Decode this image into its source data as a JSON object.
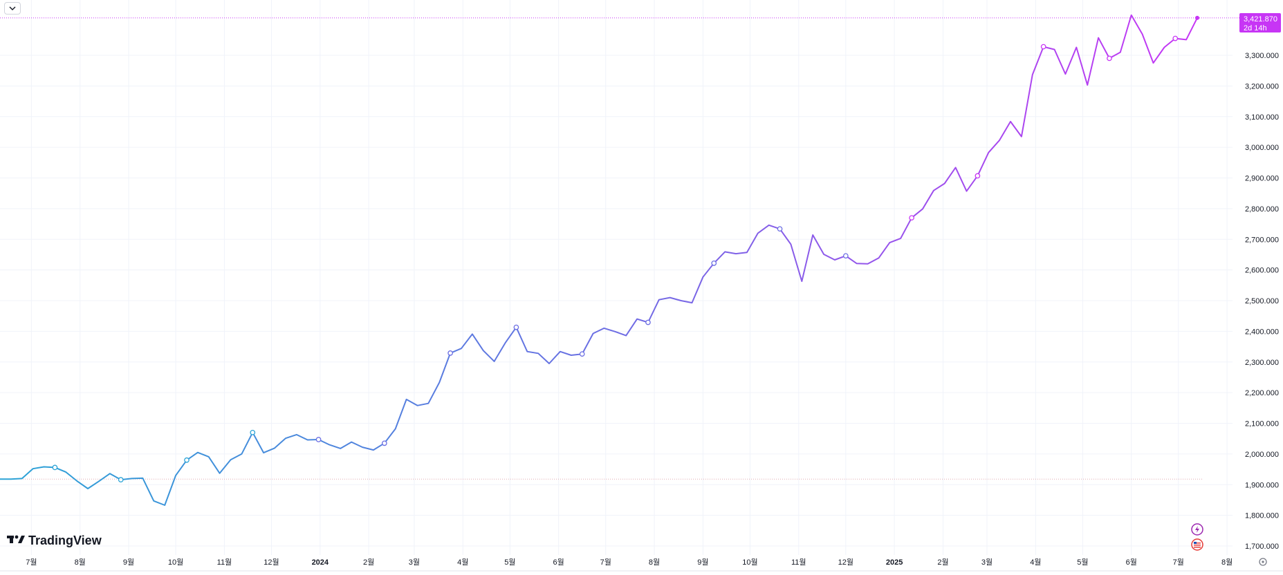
{
  "toolbar": {
    "collapse_icon": "chevron-down-icon"
  },
  "logo": {
    "text": "TradingView",
    "icon": "tradingview-logo-icon"
  },
  "price_tag": {
    "value": "3,421.870",
    "countdown": "2d 14h",
    "color": "#c735f5"
  },
  "badges": [
    {
      "icon": "lightning-icon",
      "color": "#9c27b0"
    },
    {
      "icon": "us-flag-icon",
      "color": "#e53935"
    }
  ],
  "settings": {
    "icon": "gear-icon"
  },
  "colors": {
    "start": "#2aa3d6",
    "mid": "#6b6ee3",
    "end": "#c735f5",
    "baseline": "#e0a8b0",
    "grid": "#f0f3fa"
  },
  "chart_data": {
    "type": "line",
    "ylim": [
      1680,
      3440
    ],
    "y_ticks": [
      "1,700.000",
      "1,800.000",
      "1,900.000",
      "2,000.000",
      "2,100.000",
      "2,200.000",
      "2,300.000",
      "2,400.000",
      "2,500.000",
      "2,600.000",
      "2,700.000",
      "2,800.000",
      "2,900.000",
      "3,000.000",
      "3,100.000",
      "3,200.000",
      "3,300.000"
    ],
    "x_ticks": [
      {
        "label": "7월",
        "bold": false,
        "date": "2023-07-01"
      },
      {
        "label": "8월",
        "bold": false,
        "date": "2023-08-01"
      },
      {
        "label": "9월",
        "bold": false,
        "date": "2023-09-01"
      },
      {
        "label": "10월",
        "bold": false,
        "date": "2023-10-01"
      },
      {
        "label": "11월",
        "bold": false,
        "date": "2023-11-01"
      },
      {
        "label": "12월",
        "bold": false,
        "date": "2023-12-01"
      },
      {
        "label": "2024",
        "bold": true,
        "date": "2024-01-01"
      },
      {
        "label": "2월",
        "bold": false,
        "date": "2024-02-01"
      },
      {
        "label": "3월",
        "bold": false,
        "date": "2024-03-01"
      },
      {
        "label": "4월",
        "bold": false,
        "date": "2024-04-01"
      },
      {
        "label": "5월",
        "bold": false,
        "date": "2024-05-01"
      },
      {
        "label": "6월",
        "bold": false,
        "date": "2024-06-01"
      },
      {
        "label": "7월",
        "bold": false,
        "date": "2024-07-01"
      },
      {
        "label": "8월",
        "bold": false,
        "date": "2024-08-01"
      },
      {
        "label": "9월",
        "bold": false,
        "date": "2024-09-01"
      },
      {
        "label": "10월",
        "bold": false,
        "date": "2024-10-01"
      },
      {
        "label": "11월",
        "bold": false,
        "date": "2024-11-01"
      },
      {
        "label": "12월",
        "bold": false,
        "date": "2024-12-01"
      },
      {
        "label": "2025",
        "bold": true,
        "date": "2025-01-01"
      },
      {
        "label": "2월",
        "bold": false,
        "date": "2025-02-01"
      },
      {
        "label": "3월",
        "bold": false,
        "date": "2025-03-01"
      },
      {
        "label": "4월",
        "bold": false,
        "date": "2025-04-01"
      },
      {
        "label": "5월",
        "bold": false,
        "date": "2025-05-01"
      },
      {
        "label": "6월",
        "bold": false,
        "date": "2025-06-01"
      },
      {
        "label": "7월",
        "bold": false,
        "date": "2025-07-01"
      },
      {
        "label": "8월",
        "bold": false,
        "date": "2025-08-01"
      }
    ],
    "baseline": 1918,
    "last_value": 3421.87,
    "points": [
      {
        "x": "2023-06-11",
        "y": 1918
      },
      {
        "x": "2023-06-18",
        "y": 1918
      },
      {
        "x": "2023-06-25",
        "y": 1920
      },
      {
        "x": "2023-07-02",
        "y": 1952
      },
      {
        "x": "2023-07-09",
        "y": 1958
      },
      {
        "x": "2023-07-16",
        "y": 1956,
        "marker": true
      },
      {
        "x": "2023-07-23",
        "y": 1941
      },
      {
        "x": "2023-07-30",
        "y": 1912
      },
      {
        "x": "2023-08-06",
        "y": 1887
      },
      {
        "x": "2023-08-13",
        "y": 1911
      },
      {
        "x": "2023-08-20",
        "y": 1936
      },
      {
        "x": "2023-08-27",
        "y": 1916,
        "marker": true
      },
      {
        "x": "2023-09-03",
        "y": 1920
      },
      {
        "x": "2023-09-10",
        "y": 1921
      },
      {
        "x": "2023-09-17",
        "y": 1847
      },
      {
        "x": "2023-09-24",
        "y": 1833
      },
      {
        "x": "2023-10-01",
        "y": 1930
      },
      {
        "x": "2023-10-08",
        "y": 1980,
        "marker": true
      },
      {
        "x": "2023-10-15",
        "y": 2005
      },
      {
        "x": "2023-10-22",
        "y": 1991
      },
      {
        "x": "2023-10-29",
        "y": 1937
      },
      {
        "x": "2023-11-05",
        "y": 1981
      },
      {
        "x": "2023-11-12",
        "y": 2000
      },
      {
        "x": "2023-11-19",
        "y": 2070,
        "marker": true
      },
      {
        "x": "2023-11-26",
        "y": 2004
      },
      {
        "x": "2023-12-03",
        "y": 2019
      },
      {
        "x": "2023-12-10",
        "y": 2051
      },
      {
        "x": "2023-12-17",
        "y": 2063
      },
      {
        "x": "2023-12-24",
        "y": 2046
      },
      {
        "x": "2023-12-31",
        "y": 2047,
        "marker": true
      },
      {
        "x": "2024-01-07",
        "y": 2030
      },
      {
        "x": "2024-01-14",
        "y": 2018
      },
      {
        "x": "2024-01-21",
        "y": 2039
      },
      {
        "x": "2024-01-28",
        "y": 2022
      },
      {
        "x": "2024-02-04",
        "y": 2013
      },
      {
        "x": "2024-02-11",
        "y": 2035,
        "marker": true
      },
      {
        "x": "2024-02-18",
        "y": 2082
      },
      {
        "x": "2024-02-25",
        "y": 2178
      },
      {
        "x": "2024-03-03",
        "y": 2158
      },
      {
        "x": "2024-03-10",
        "y": 2165
      },
      {
        "x": "2024-03-17",
        "y": 2233
      },
      {
        "x": "2024-03-24",
        "y": 2329,
        "marker": true
      },
      {
        "x": "2024-03-31",
        "y": 2344
      },
      {
        "x": "2024-04-07",
        "y": 2391
      },
      {
        "x": "2024-04-14",
        "y": 2337
      },
      {
        "x": "2024-04-21",
        "y": 2302
      },
      {
        "x": "2024-04-28",
        "y": 2362
      },
      {
        "x": "2024-05-05",
        "y": 2413,
        "marker": true
      },
      {
        "x": "2024-05-12",
        "y": 2334
      },
      {
        "x": "2024-05-19",
        "y": 2328
      },
      {
        "x": "2024-05-26",
        "y": 2295
      },
      {
        "x": "2024-06-02",
        "y": 2334
      },
      {
        "x": "2024-06-09",
        "y": 2322
      },
      {
        "x": "2024-06-16",
        "y": 2326,
        "marker": true
      },
      {
        "x": "2024-06-23",
        "y": 2393
      },
      {
        "x": "2024-06-30",
        "y": 2410
      },
      {
        "x": "2024-07-07",
        "y": 2399
      },
      {
        "x": "2024-07-14",
        "y": 2386
      },
      {
        "x": "2024-07-21",
        "y": 2440
      },
      {
        "x": "2024-07-28",
        "y": 2429,
        "marker": true
      },
      {
        "x": "2024-08-04",
        "y": 2503
      },
      {
        "x": "2024-08-11",
        "y": 2510
      },
      {
        "x": "2024-08-18",
        "y": 2500
      },
      {
        "x": "2024-08-25",
        "y": 2493
      },
      {
        "x": "2024-09-01",
        "y": 2577
      },
      {
        "x": "2024-09-08",
        "y": 2622,
        "marker": true
      },
      {
        "x": "2024-09-15",
        "y": 2659
      },
      {
        "x": "2024-09-22",
        "y": 2653
      },
      {
        "x": "2024-09-29",
        "y": 2657
      },
      {
        "x": "2024-10-06",
        "y": 2720
      },
      {
        "x": "2024-10-13",
        "y": 2746
      },
      {
        "x": "2024-10-20",
        "y": 2734,
        "marker": true
      },
      {
        "x": "2024-10-27",
        "y": 2684
      },
      {
        "x": "2024-11-03",
        "y": 2563
      },
      {
        "x": "2024-11-10",
        "y": 2714
      },
      {
        "x": "2024-11-17",
        "y": 2651
      },
      {
        "x": "2024-11-24",
        "y": 2633
      },
      {
        "x": "2024-12-01",
        "y": 2646,
        "marker": true
      },
      {
        "x": "2024-12-08",
        "y": 2621
      },
      {
        "x": "2024-12-15",
        "y": 2620
      },
      {
        "x": "2024-12-22",
        "y": 2639
      },
      {
        "x": "2024-12-29",
        "y": 2689
      },
      {
        "x": "2025-01-05",
        "y": 2703
      },
      {
        "x": "2025-01-12",
        "y": 2770,
        "marker": true
      },
      {
        "x": "2025-01-19",
        "y": 2799
      },
      {
        "x": "2025-01-26",
        "y": 2859
      },
      {
        "x": "2025-02-02",
        "y": 2882
      },
      {
        "x": "2025-02-09",
        "y": 2934
      },
      {
        "x": "2025-02-16",
        "y": 2857
      },
      {
        "x": "2025-02-23",
        "y": 2907,
        "marker": true
      },
      {
        "x": "2025-03-02",
        "y": 2983
      },
      {
        "x": "2025-03-09",
        "y": 3023
      },
      {
        "x": "2025-03-16",
        "y": 3084
      },
      {
        "x": "2025-03-23",
        "y": 3035
      },
      {
        "x": "2025-03-30",
        "y": 3237
      },
      {
        "x": "2025-04-06",
        "y": 3328,
        "marker": true
      },
      {
        "x": "2025-04-13",
        "y": 3319
      },
      {
        "x": "2025-04-20",
        "y": 3239
      },
      {
        "x": "2025-04-27",
        "y": 3326
      },
      {
        "x": "2025-05-04",
        "y": 3203
      },
      {
        "x": "2025-05-11",
        "y": 3357
      },
      {
        "x": "2025-05-18",
        "y": 3290,
        "marker": true
      },
      {
        "x": "2025-05-25",
        "y": 3310
      },
      {
        "x": "2025-06-01",
        "y": 3431
      },
      {
        "x": "2025-06-08",
        "y": 3369
      },
      {
        "x": "2025-06-15",
        "y": 3275
      },
      {
        "x": "2025-06-22",
        "y": 3326
      },
      {
        "x": "2025-06-29",
        "y": 3355,
        "marker": true
      },
      {
        "x": "2025-07-06",
        "y": 3351
      },
      {
        "x": "2025-07-13",
        "y": 3421.87
      }
    ]
  }
}
